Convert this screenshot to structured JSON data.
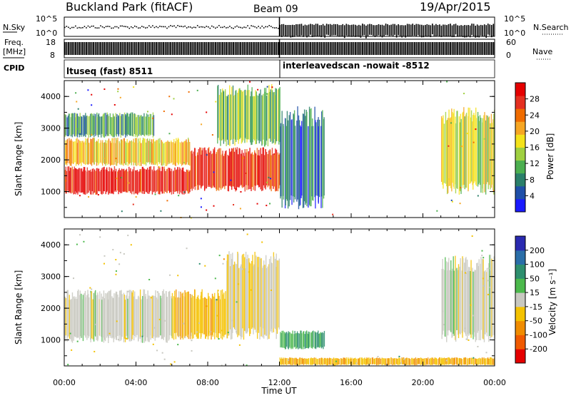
{
  "header": {
    "title": "Buckland Park (fitACF)",
    "beam": "Beam 09",
    "date": "19/Apr/2015"
  },
  "strips": {
    "nsky_label": "N.Sky",
    "nsky_ticks": [
      "10^5",
      "10^0"
    ],
    "nsearch_label": "N.Search",
    "nsearch_ticks": [
      "10^5",
      "10^0"
    ],
    "freq_label_1": "Freq.",
    "freq_label_2": "[MHz]",
    "freq_ticks": [
      "18",
      "8"
    ],
    "nave_label": "Nave",
    "nave_ticks": [
      "60",
      "0"
    ],
    "cpid_label": "CPID",
    "cpid_segments": [
      {
        "label": "ltuseq (fast) 8511",
        "start_h": 0,
        "end_h": 12
      },
      {
        "label": "interleavedscan -nowait -8512",
        "start_h": 12,
        "end_h": 24
      }
    ]
  },
  "axes": {
    "ylabel": "Slant Range [km]",
    "xlabel": "Time UT",
    "x_ticks": [
      "00:00",
      "04:00",
      "08:00",
      "12:00",
      "16:00",
      "20:00",
      "00:00"
    ],
    "y_ticks": [
      "1000",
      "2000",
      "3000",
      "4000"
    ]
  },
  "colorbars": {
    "power": {
      "label": "Power [dB]",
      "ticks": [
        "4",
        "8",
        "12",
        "16",
        "20",
        "24",
        "28"
      ],
      "colors": [
        "#1a1aff",
        "#1f4fa8",
        "#2a7f6a",
        "#4caf50",
        "#9fd040",
        "#f4e21a",
        "#f6a623",
        "#f06c00",
        "#e53020",
        "#e50000"
      ]
    },
    "velocity": {
      "label": "Velocity [m s⁻¹]",
      "ticks": [
        "200",
        "100",
        "50",
        "15",
        "-15",
        "-50",
        "-100",
        "-200"
      ],
      "colors": [
        "#2a2ab0",
        "#2a6ea8",
        "#2e8f6e",
        "#4cb94c",
        "#c8c8c0",
        "#f4c200",
        "#f08c00",
        "#f05a00",
        "#e50000"
      ]
    }
  },
  "chart_data": [
    {
      "type": "heatmap",
      "title": "Power",
      "xlabel": "Time UT",
      "ylabel": "Slant Range [km]",
      "xlim": [
        0,
        24
      ],
      "ylim": [
        180,
        4500
      ],
      "colorbar_label": "Power [dB]",
      "colorbar_range": [
        0,
        30
      ],
      "regions": [
        {
          "t_start": 0,
          "t_end": 7,
          "r_min": 900,
          "r_max": 1800,
          "value_db": 28
        },
        {
          "t_start": 0,
          "t_end": 7,
          "r_min": 1800,
          "r_max": 2700,
          "value_db": 18
        },
        {
          "t_start": 0,
          "t_end": 5,
          "r_min": 2700,
          "r_max": 3500,
          "value_db": 10
        },
        {
          "t_start": 7,
          "t_end": 12,
          "r_min": 1000,
          "r_max": 2400,
          "value_db": 26
        },
        {
          "t_start": 8.5,
          "t_end": 12,
          "r_min": 2400,
          "r_max": 4400,
          "value_db": 12
        },
        {
          "t_start": 12,
          "t_end": 14.5,
          "r_min": 400,
          "r_max": 3700,
          "value_db": 6
        },
        {
          "t_start": 21,
          "t_end": 24,
          "r_min": 900,
          "r_max": 3700,
          "value_db": 16
        }
      ]
    },
    {
      "type": "heatmap",
      "title": "Velocity",
      "xlabel": "Time UT",
      "ylabel": "Slant Range [km]",
      "xlim": [
        0,
        24
      ],
      "ylim": [
        180,
        4500
      ],
      "colorbar_label": "Velocity [m s⁻¹]",
      "colorbar_range": [
        -200,
        200
      ],
      "regions": [
        {
          "t_start": 0,
          "t_end": 6,
          "r_min": 900,
          "r_max": 2600,
          "value_ms": 0
        },
        {
          "t_start": 6,
          "t_end": 9,
          "r_min": 1000,
          "r_max": 2600,
          "value_ms": -50
        },
        {
          "t_start": 9,
          "t_end": 12,
          "r_min": 1000,
          "r_max": 3800,
          "value_ms": -20
        },
        {
          "t_start": 12,
          "t_end": 14.5,
          "r_min": 700,
          "r_max": 1300,
          "value_ms": 60
        },
        {
          "t_start": 12,
          "t_end": 24,
          "r_min": 200,
          "r_max": 450,
          "value_ms": -60
        },
        {
          "t_start": 21,
          "t_end": 24,
          "r_min": 900,
          "r_max": 3700,
          "value_ms": 0
        }
      ]
    }
  ]
}
